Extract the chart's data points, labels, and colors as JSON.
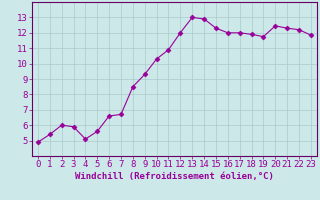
{
  "x": [
    0,
    1,
    2,
    3,
    4,
    5,
    6,
    7,
    8,
    9,
    10,
    11,
    12,
    13,
    14,
    15,
    16,
    17,
    18,
    19,
    20,
    21,
    22,
    23
  ],
  "y": [
    4.9,
    5.4,
    6.0,
    5.9,
    5.1,
    5.6,
    6.6,
    6.7,
    8.5,
    9.3,
    10.3,
    10.9,
    12.0,
    13.0,
    12.9,
    12.3,
    12.0,
    12.0,
    11.9,
    11.75,
    12.45,
    12.3,
    12.2,
    11.85
  ],
  "line_color": "#990099",
  "marker": "D",
  "marker_size": 2.5,
  "bg_color": "#cce8e8",
  "grid_color": "#aacccc",
  "xlabel": "Windchill (Refroidissement éolien,°C)",
  "xlabel_color": "#990099",
  "ylim": [
    4,
    14
  ],
  "xlim": [
    -0.5,
    23.5
  ],
  "yticks": [
    5,
    6,
    7,
    8,
    9,
    10,
    11,
    12,
    13
  ],
  "xticks": [
    0,
    1,
    2,
    3,
    4,
    5,
    6,
    7,
    8,
    9,
    10,
    11,
    12,
    13,
    14,
    15,
    16,
    17,
    18,
    19,
    20,
    21,
    22,
    23
  ],
  "tick_label_color": "#990099",
  "axis_label_fontsize": 6.5,
  "tick_fontsize": 6.5,
  "border_color": "#660066",
  "border_width": 0.8
}
